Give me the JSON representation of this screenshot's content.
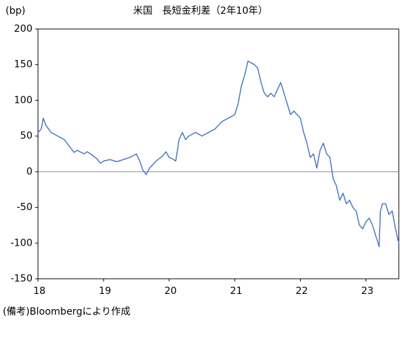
{
  "chart_data": {
    "type": "line",
    "title": "米国　長短金利差（2年10年）",
    "y_label": "(bp)",
    "note": "(備考)Bloombergにより作成",
    "xlim": [
      18,
      23.5
    ],
    "xticks": [
      18,
      19,
      20,
      21,
      22,
      23
    ],
    "ylim": [
      -150,
      200
    ],
    "yticks": [
      -150,
      -100,
      -50,
      0,
      50,
      100,
      150,
      200
    ],
    "zero_line": true,
    "x": [
      18.0,
      18.05,
      18.08,
      18.12,
      18.2,
      18.3,
      18.4,
      18.5,
      18.55,
      18.6,
      18.7,
      18.75,
      18.8,
      18.9,
      18.95,
      19.0,
      19.1,
      19.2,
      19.3,
      19.4,
      19.5,
      19.55,
      19.6,
      19.65,
      19.7,
      19.8,
      19.9,
      19.95,
      20.0,
      20.05,
      20.1,
      20.15,
      20.2,
      20.25,
      20.3,
      20.4,
      20.5,
      20.6,
      20.7,
      20.8,
      20.9,
      21.0,
      21.05,
      21.1,
      21.15,
      21.2,
      21.3,
      21.35,
      21.4,
      21.45,
      21.5,
      21.55,
      21.6,
      21.65,
      21.7,
      21.75,
      21.8,
      21.85,
      21.9,
      21.95,
      22.0,
      22.05,
      22.1,
      22.15,
      22.2,
      22.25,
      22.3,
      22.35,
      22.4,
      22.45,
      22.5,
      22.55,
      22.6,
      22.65,
      22.7,
      22.75,
      22.8,
      22.85,
      22.9,
      22.95,
      23.0,
      23.05,
      23.1,
      23.15,
      23.2,
      23.22,
      23.25,
      23.3,
      23.35,
      23.4,
      23.45,
      23.5
    ],
    "series": [
      {
        "name": "長短金利差",
        "color": "#4a7abf",
        "values": [
          55,
          60,
          75,
          65,
          55,
          50,
          45,
          33,
          27,
          30,
          25,
          28,
          25,
          18,
          12,
          15,
          17,
          14,
          17,
          20,
          25,
          15,
          2,
          -4,
          5,
          15,
          22,
          28,
          20,
          18,
          15,
          45,
          55,
          45,
          50,
          55,
          50,
          55,
          60,
          70,
          75,
          80,
          95,
          120,
          135,
          155,
          150,
          145,
          125,
          110,
          105,
          110,
          105,
          115,
          125,
          110,
          95,
          80,
          85,
          80,
          75,
          55,
          40,
          20,
          25,
          5,
          30,
          40,
          25,
          20,
          -10,
          -20,
          -40,
          -30,
          -45,
          -40,
          -50,
          -55,
          -75,
          -80,
          -70,
          -65,
          -75,
          -90,
          -105,
          -55,
          -45,
          -45,
          -60,
          -55,
          -80,
          -100
        ]
      }
    ]
  }
}
